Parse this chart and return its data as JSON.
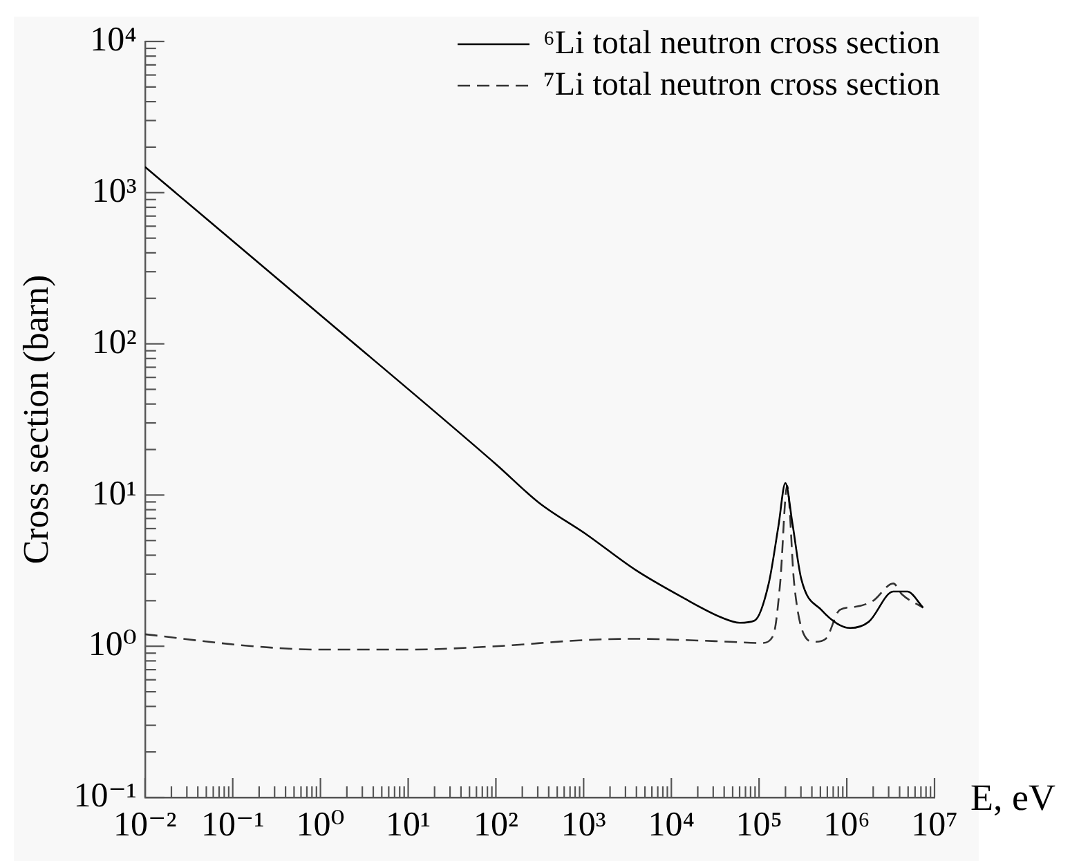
{
  "chart_data": {
    "type": "line",
    "xlabel": "E, eV",
    "ylabel": "Cross section (barn)",
    "log": "xy",
    "legend": "top right",
    "marker": "none",
    "xlim": [
      0.01,
      10000000
    ],
    "ylim": [
      0.1,
      10000
    ],
    "xticks": [
      {
        "value": 0.01,
        "label": "10⁻²"
      },
      {
        "value": 0.02,
        "label": null
      },
      {
        "value": 0.03,
        "label": null
      },
      {
        "value": 0.04,
        "label": null
      },
      {
        "value": 0.05,
        "label": null
      },
      {
        "value": 0.06,
        "label": null
      },
      {
        "value": 0.07,
        "label": null
      },
      {
        "value": 0.08,
        "label": null
      },
      {
        "value": 0.09,
        "label": null
      },
      {
        "value": 0.1,
        "label": "10⁻¹"
      },
      {
        "value": 0.2,
        "label": null
      },
      {
        "value": 0.3,
        "label": null
      },
      {
        "value": 0.4,
        "label": null
      },
      {
        "value": 0.5,
        "label": null
      },
      {
        "value": 0.6,
        "label": null
      },
      {
        "value": 0.7,
        "label": null
      },
      {
        "value": 0.8,
        "label": null
      },
      {
        "value": 0.9,
        "label": null
      },
      {
        "value": 1,
        "label": "10⁰"
      },
      {
        "value": 2,
        "label": null
      },
      {
        "value": 3,
        "label": null
      },
      {
        "value": 4,
        "label": null
      },
      {
        "value": 5,
        "label": null
      },
      {
        "value": 6,
        "label": null
      },
      {
        "value": 7,
        "label": null
      },
      {
        "value": 8,
        "label": null
      },
      {
        "value": 9,
        "label": null
      },
      {
        "value": 10,
        "label": "10¹"
      },
      {
        "value": 20,
        "label": null
      },
      {
        "value": 30,
        "label": null
      },
      {
        "value": 40,
        "label": null
      },
      {
        "value": 50,
        "label": null
      },
      {
        "value": 60,
        "label": null
      },
      {
        "value": 70,
        "label": null
      },
      {
        "value": 80,
        "label": null
      },
      {
        "value": 90,
        "label": null
      },
      {
        "value": 100,
        "label": "10²"
      },
      {
        "value": 200,
        "label": null
      },
      {
        "value": 300,
        "label": null
      },
      {
        "value": 400,
        "label": null
      },
      {
        "value": 500,
        "label": null
      },
      {
        "value": 600,
        "label": null
      },
      {
        "value": 700,
        "label": null
      },
      {
        "value": 800,
        "label": null
      },
      {
        "value": 900,
        "label": null
      },
      {
        "value": 1000,
        "label": "10³"
      },
      {
        "value": 2000,
        "label": null
      },
      {
        "value": 3000,
        "label": null
      },
      {
        "value": 4000,
        "label": null
      },
      {
        "value": 5000,
        "label": null
      },
      {
        "value": 6000,
        "label": null
      },
      {
        "value": 7000,
        "label": null
      },
      {
        "value": 8000,
        "label": null
      },
      {
        "value": 9000,
        "label": null
      },
      {
        "value": 10000,
        "label": "10⁴"
      },
      {
        "value": 20000,
        "label": null
      },
      {
        "value": 30000,
        "label": null
      },
      {
        "value": 40000,
        "label": null
      },
      {
        "value": 50000,
        "label": null
      },
      {
        "value": 60000,
        "label": null
      },
      {
        "value": 70000,
        "label": null
      },
      {
        "value": 80000,
        "label": null
      },
      {
        "value": 90000,
        "label": null
      },
      {
        "value": 100000,
        "label": "10⁵"
      },
      {
        "value": 200000,
        "label": null
      },
      {
        "value": 300000,
        "label": null
      },
      {
        "value": 400000,
        "label": null
      },
      {
        "value": 500000,
        "label": null
      },
      {
        "value": 600000,
        "label": null
      },
      {
        "value": 700000,
        "label": null
      },
      {
        "value": 800000,
        "label": null
      },
      {
        "value": 900000,
        "label": null
      },
      {
        "value": 1000000,
        "label": "10⁶"
      },
      {
        "value": 2000000,
        "label": null
      },
      {
        "value": 3000000,
        "label": null
      },
      {
        "value": 4000000,
        "label": null
      },
      {
        "value": 5000000,
        "label": null
      },
      {
        "value": 6000000,
        "label": null
      },
      {
        "value": 7000000,
        "label": null
      },
      {
        "value": 8000000,
        "label": null
      },
      {
        "value": 9000000,
        "label": null
      },
      {
        "value": 10000000,
        "label": "10⁷"
      }
    ],
    "yticks": [
      {
        "value": 0.1,
        "label": "10⁻¹"
      },
      {
        "value": 0.2,
        "label": null
      },
      {
        "value": 0.3,
        "label": null
      },
      {
        "value": 0.4,
        "label": null
      },
      {
        "value": 0.5,
        "label": null
      },
      {
        "value": 0.6,
        "label": null
      },
      {
        "value": 0.7,
        "label": null
      },
      {
        "value": 0.8,
        "label": null
      },
      {
        "value": 0.9,
        "label": null
      },
      {
        "value": 1,
        "label": "10⁰"
      },
      {
        "value": 2,
        "label": null
      },
      {
        "value": 3,
        "label": null
      },
      {
        "value": 4,
        "label": null
      },
      {
        "value": 5,
        "label": null
      },
      {
        "value": 6,
        "label": null
      },
      {
        "value": 7,
        "label": null
      },
      {
        "value": 8,
        "label": null
      },
      {
        "value": 9,
        "label": null
      },
      {
        "value": 10,
        "label": "10¹"
      },
      {
        "value": 20,
        "label": null
      },
      {
        "value": 30,
        "label": null
      },
      {
        "value": 40,
        "label": null
      },
      {
        "value": 50,
        "label": null
      },
      {
        "value": 60,
        "label": null
      },
      {
        "value": 70,
        "label": null
      },
      {
        "value": 80,
        "label": null
      },
      {
        "value": 90,
        "label": null
      },
      {
        "value": 100,
        "label": "10²"
      },
      {
        "value": 200,
        "label": null
      },
      {
        "value": 300,
        "label": null
      },
      {
        "value": 400,
        "label": null
      },
      {
        "value": 500,
        "label": null
      },
      {
        "value": 600,
        "label": null
      },
      {
        "value": 700,
        "label": null
      },
      {
        "value": 800,
        "label": null
      },
      {
        "value": 900,
        "label": null
      },
      {
        "value": 1000,
        "label": "10³"
      },
      {
        "value": 2000,
        "label": null
      },
      {
        "value": 3000,
        "label": null
      },
      {
        "value": 4000,
        "label": null
      },
      {
        "value": 5000,
        "label": null
      },
      {
        "value": 6000,
        "label": null
      },
      {
        "value": 7000,
        "label": null
      },
      {
        "value": 8000,
        "label": null
      },
      {
        "value": 9000,
        "label": null
      },
      {
        "value": 10000,
        "label": "10⁴"
      }
    ],
    "series": [
      {
        "name": "⁶Li total neutron cross section",
        "color": "#000000",
        "line_style": "solid",
        "x": [
          0.01,
          1,
          100,
          309,
          1072,
          3890,
          13490,
          37150,
          60260,
          89130,
          128800,
          166000,
          199500,
          239900,
          302000,
          512900,
          1096000,
          1778000,
          3388000,
          4898000,
          7413000
        ],
        "values": [
          1480,
          155,
          16,
          8.9,
          5.5,
          3.2,
          2.1,
          1.55,
          1.43,
          1.48,
          2.6,
          6.2,
          12,
          6.5,
          2.8,
          1.74,
          1.32,
          1.45,
          2.3,
          2.3,
          1.8
        ]
      },
      {
        "name": "⁷Li total neutron cross section",
        "color": "#333333",
        "line_style": "dashed",
        "x": [
          0.01,
          0.17,
          1,
          10,
          100,
          1072,
          3890,
          13490,
          46770,
          107200,
          144500,
          173800,
          208900,
          251200,
          323600,
          426600,
          575400,
          831800,
          1230000,
          1995000,
          3388000,
          4266000,
          7413000
        ],
        "values": [
          1.2,
          1.0,
          0.95,
          0.95,
          1.0,
          1.1,
          1.12,
          1.1,
          1.07,
          1.05,
          1.17,
          2.6,
          11.5,
          2.6,
          1.2,
          1.07,
          1.12,
          1.74,
          1.82,
          2.0,
          2.6,
          2.2,
          1.8
        ]
      }
    ]
  }
}
